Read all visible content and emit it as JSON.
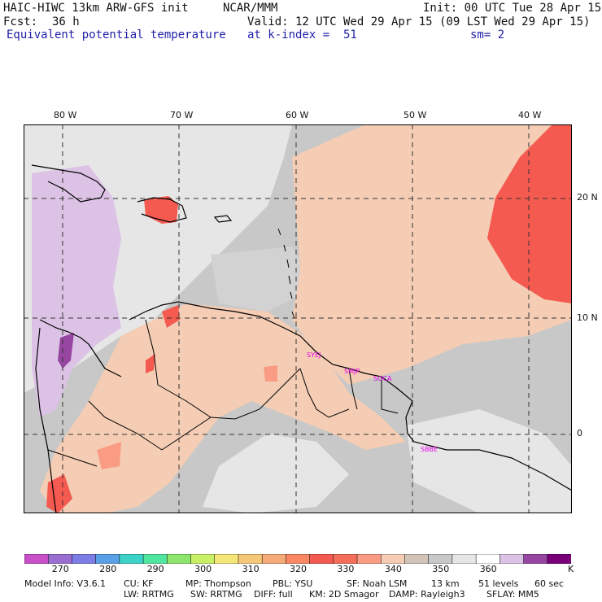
{
  "header": {
    "model": "HAIC-HIWC 13km ARW-GFS init",
    "org": "NCAR/MMM",
    "init": "Init: 00 UTC Tue 28 Apr 15",
    "fcst_label": "Fcst:",
    "fcst_value": "36 h",
    "valid": "Valid: 12 UTC Wed 29 Apr 15 (09 LST Wed 29 Apr 15)",
    "field": "Equivalent potential temperature",
    "level": "at k-index =  51",
    "smooth": "sm= 2"
  },
  "map": {
    "lon_labels": [
      "80 W",
      "70 W",
      "60 W",
      "50 W",
      "40 W"
    ],
    "lat_labels": [
      "20 N",
      "10 N",
      "0"
    ],
    "stations": [
      "SYEJ",
      "SMJP",
      "SOCA",
      "SBBE"
    ],
    "colors": {
      "background_gray": "#c8c8c8",
      "light_gray": "#e6e6e6",
      "peach": "#f5cdb4",
      "salmon": "#fa9b83",
      "red": "#f45a50",
      "lavender": "#dcc3e6",
      "purple": "#9646a0",
      "station_text": "#e600e6"
    }
  },
  "colorbar": {
    "unit": "K",
    "ticks": [
      "270",
      "280",
      "290",
      "300",
      "310",
      "320",
      "330",
      "340",
      "350",
      "360"
    ],
    "colors": [
      "#c850c8",
      "#9b6fd2",
      "#7d7de6",
      "#5aa0e6",
      "#3cd2c8",
      "#50e6a0",
      "#8ce66e",
      "#c8f064",
      "#f5e678",
      "#f5c878",
      "#f5aa78",
      "#fa8764",
      "#f45a50",
      "#f46e5a",
      "#fa9b83",
      "#f5cdb4",
      "#d2c3b9",
      "#c8c8c8",
      "#e6e6e6",
      "#ffffff",
      "#dcc3e6",
      "#9646a0",
      "#780078"
    ]
  },
  "footer": {
    "line1": {
      "model_info": "Model Info: V3.6.1",
      "cu": "CU: KF",
      "mp": "MP: Thompson",
      "pbl": "PBL: YSU",
      "sf": "SF: Noah LSM",
      "res": "13 km",
      "levels": "51 levels",
      "dt": "60 sec"
    },
    "line2": {
      "lw": "LW: RRTMG",
      "sw": "SW: RRTMG",
      "diff": "DIFF: full",
      "km": "KM: 2D Smagor",
      "damp": "DAMP: Rayleigh3",
      "sflay": "SFLAY: MM5"
    }
  }
}
